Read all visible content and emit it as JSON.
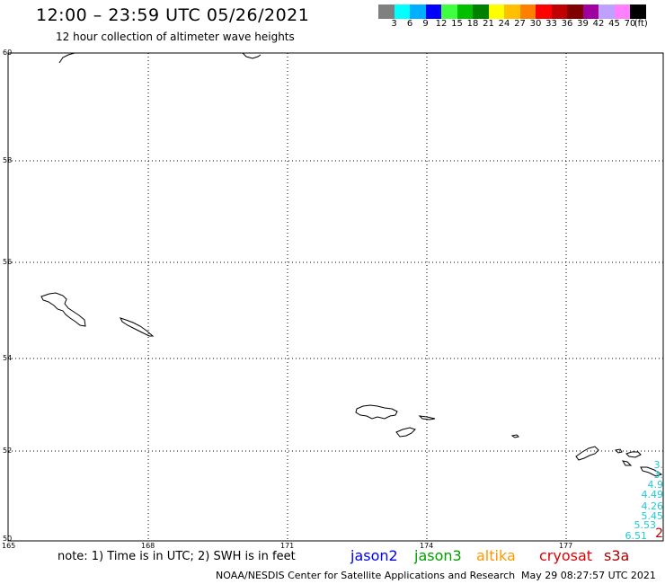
{
  "header": {
    "title": "12:00 – 23:59 UTC 05/26/2021",
    "subtitle": "12 hour collection of altimeter wave heights"
  },
  "color_scale": {
    "labels": [
      "3",
      "6",
      "9",
      "12",
      "15",
      "18",
      "21",
      "24",
      "27",
      "30",
      "33",
      "36",
      "39",
      "42",
      "45",
      "70",
      "(ft)"
    ],
    "colors": [
      "#808080",
      "#00ffff",
      "#00b0ff",
      "#0000ff",
      "#40ff40",
      "#00c000",
      "#008000",
      "#ffff00",
      "#ffc000",
      "#ff8000",
      "#ff0000",
      "#c00000",
      "#800000",
      "#a000a0",
      "#c0a0ff",
      "#ff80ff",
      "#000000"
    ]
  },
  "map": {
    "lat_labels": [
      "60",
      "58",
      "56",
      "54",
      "52",
      "50"
    ],
    "lon_labels": [
      "165",
      "168",
      "171",
      "174",
      "177"
    ],
    "observations": [
      {
        "label": "3.",
        "color": "#20c8d8"
      },
      {
        "label": "3.",
        "color": "#20c8d8"
      },
      {
        "label": "4.9",
        "color": "#20c8d8"
      },
      {
        "label": "4.49",
        "color": "#20c8d8"
      },
      {
        "label": "4.26",
        "color": "#20c8d8"
      },
      {
        "label": "5.45",
        "color": "#20c8d8"
      },
      {
        "label": "5.53",
        "color": "#20c8d8"
      },
      {
        "label": "6.51",
        "color": "#20c8d8"
      },
      {
        "label": "2",
        "color": "#c00000"
      }
    ]
  },
  "note": "note: 1) Time is in UTC; 2) SWH is in feet",
  "satellites": [
    {
      "name": "jason2",
      "color": "#0000ff"
    },
    {
      "name": "jason3",
      "color": "#00a000"
    },
    {
      "name": "altika",
      "color": "#ff9900"
    },
    {
      "name": "cryosat",
      "color": "#e00000"
    },
    {
      "name": "s3a",
      "color": "#b00000"
    }
  ],
  "footer": {
    "credit": "NOAA/NESDIS Center for Satellite Applications and Research",
    "timestamp": "May 29 08:27:57 UTC 2021"
  }
}
